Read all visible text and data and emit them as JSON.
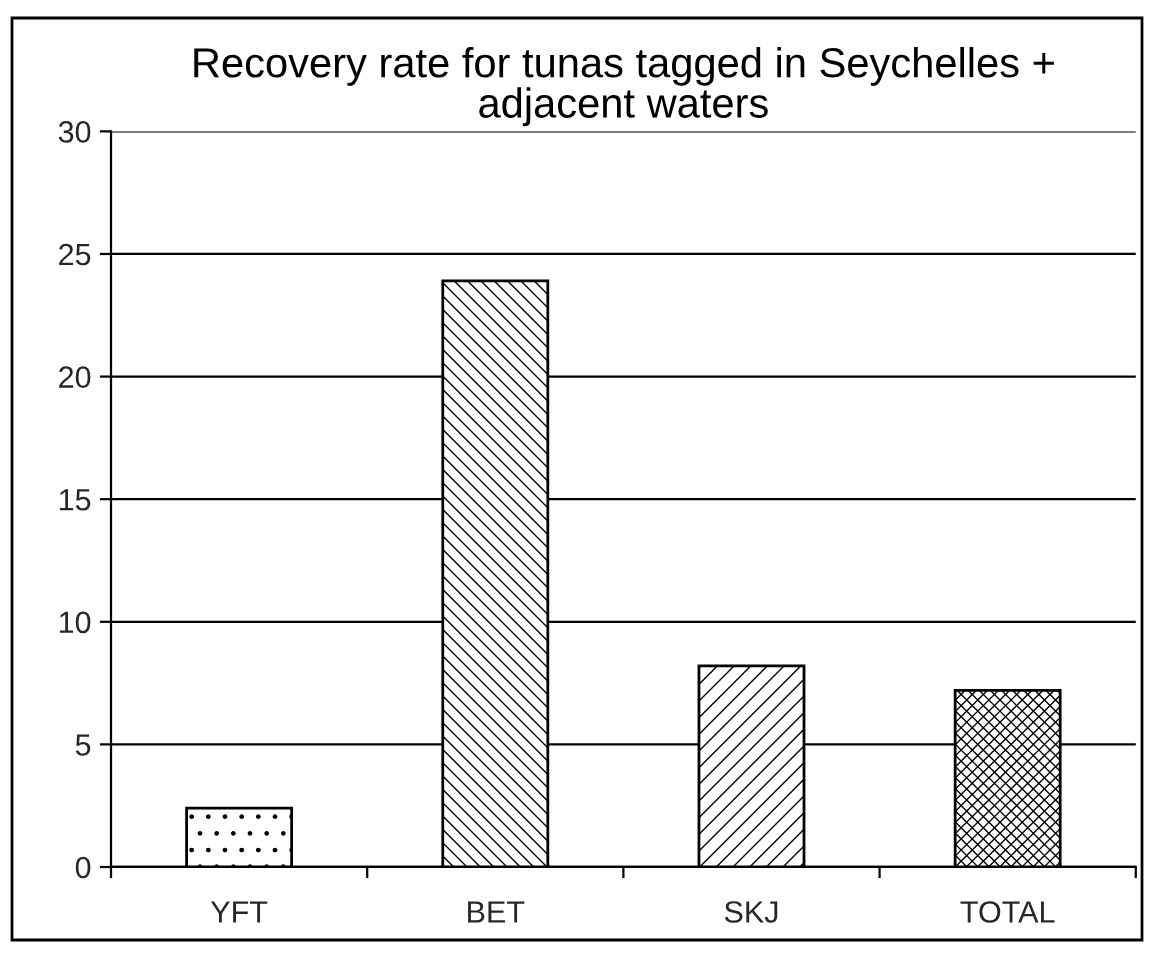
{
  "chart_data": {
    "type": "bar",
    "title": "Recovery rate for tunas tagged in Seychelles +\nadjacent waters",
    "categories": [
      "YFT",
      "BET",
      "SKJ",
      "TOTAL"
    ],
    "values": [
      2.4,
      23.9,
      8.2,
      7.2
    ],
    "color": "#000000",
    "ylim": [
      0,
      30
    ],
    "yticks": [
      0,
      5,
      10,
      15,
      20,
      25,
      30
    ],
    "grid": "y",
    "legend": false
  }
}
